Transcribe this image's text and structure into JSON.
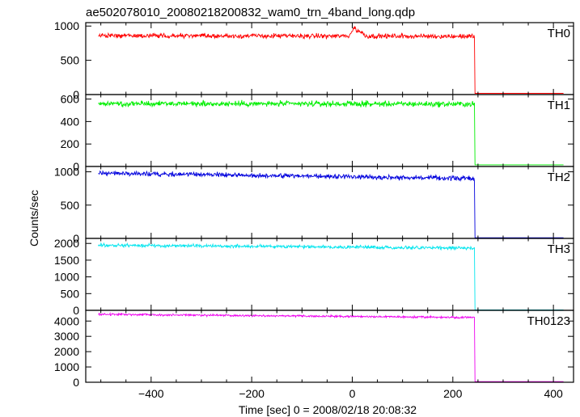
{
  "title": "ae502078010_20080218200832_wam0_trn_4band_long.qdp",
  "xlabel": "Time [sec] 0 = 2008/02/18 20:08:32",
  "ylabel": "Counts/sec",
  "chart_data": {
    "type": "line",
    "title": "ae502078010_20080218200832_wam0_trn_4band_long.qdp",
    "xlabel": "Time [sec] 0 = 2008/02/18 20:08:32",
    "ylabel": "Counts/sec",
    "xlim": [
      -530,
      440
    ],
    "x_ticks": [
      -400,
      -200,
      0,
      200,
      400
    ],
    "x_tick_labels": [
      "−400",
      "−200",
      "0",
      "200",
      "400"
    ],
    "grid": false,
    "panels": [
      {
        "name": "TH0",
        "color": "#ff0000",
        "ylim": [
          0,
          1050
        ],
        "y_ticks": [
          0,
          500,
          1000
        ],
        "series": {
          "x_start": -505,
          "x_drop": 243,
          "x_end": 420,
          "level_start": 860,
          "level_end": 850,
          "noise": 28,
          "tail_value": 18,
          "features": [
            {
              "x": 5,
              "value": 985
            },
            {
              "x": 15,
              "value": 930
            }
          ]
        }
      },
      {
        "name": "TH1",
        "color": "#00ee00",
        "ylim": [
          0,
          640
        ],
        "y_ticks": [
          0,
          200,
          400,
          600
        ],
        "series": {
          "x_start": -505,
          "x_drop": 243,
          "x_end": 420,
          "level_start": 560,
          "level_end": 555,
          "noise": 20,
          "tail_value": 15,
          "features": []
        }
      },
      {
        "name": "TH2",
        "color": "#0000dd",
        "ylim": [
          0,
          1080
        ],
        "y_ticks": [
          0,
          500,
          1000
        ],
        "series": {
          "x_start": -505,
          "x_drop": 243,
          "x_end": 420,
          "level_start": 980,
          "level_end": 900,
          "noise": 28,
          "tail_value": 10,
          "features": []
        }
      },
      {
        "name": "TH3",
        "color": "#00e5ee",
        "ylim": [
          0,
          2150
        ],
        "y_ticks": [
          0,
          500,
          1000,
          1500,
          2000
        ],
        "series": {
          "x_start": -505,
          "x_drop": 243,
          "x_end": 420,
          "level_start": 1950,
          "level_end": 1860,
          "noise": 40,
          "tail_value": 15,
          "features": []
        }
      },
      {
        "name": "TH0123",
        "color": "#ee00ee",
        "ylim": [
          0,
          4700
        ],
        "y_ticks": [
          0,
          1000,
          2000,
          3000,
          4000
        ],
        "series": {
          "x_start": -505,
          "x_drop": 243,
          "x_end": 420,
          "level_start": 4440,
          "level_end": 4230,
          "noise": 55,
          "tail_value": 40,
          "features": []
        }
      }
    ]
  }
}
